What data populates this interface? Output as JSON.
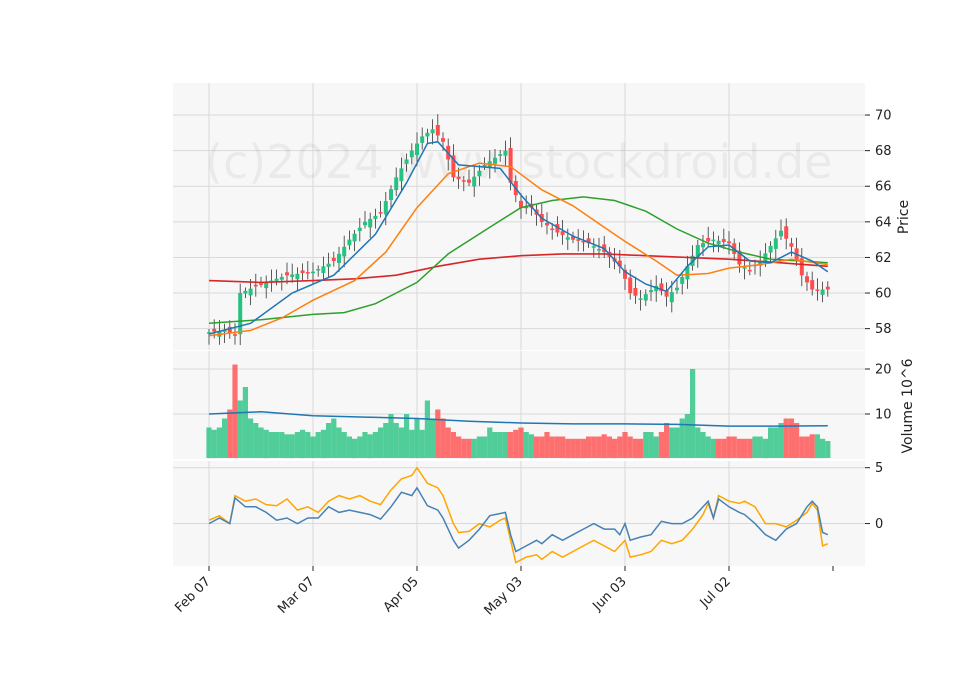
{
  "chart_data": {
    "type": "candlestick",
    "watermark": "(c)2024 www.stockdroid.de",
    "colors": {
      "up": "#26c281",
      "down": "#ff4d4d",
      "panel_bg": "#f7f7f7",
      "grid": "#d9d9d9",
      "ma_short": "#1f77b4",
      "ma_medium": "#ff7f0e",
      "ma_long": "#2ca02c",
      "ma_200": "#d62728",
      "volume_ma": "#1f77b4",
      "osc_line_1": "#4682b4",
      "osc_line_2": "#ffa500"
    },
    "x_ticks": [
      "Feb 07",
      "Mar 07",
      "Apr 05",
      "May 03",
      "Jun 03",
      "Jul 02"
    ],
    "x_tick_indices": [
      0,
      20,
      40,
      60,
      80,
      100
    ],
    "num_bars": 120,
    "price_panel": {
      "ylabel": "Price",
      "ylim": [
        56.8,
        71.8
      ],
      "yticks": [
        58,
        60,
        62,
        64,
        66,
        68,
        70
      ],
      "close_keypoints": [
        [
          0,
          57.8
        ],
        [
          3,
          57.9
        ],
        [
          5,
          57.6
        ],
        [
          6,
          60.0
        ],
        [
          10,
          60.5
        ],
        [
          15,
          61.0
        ],
        [
          20,
          61.2
        ],
        [
          24,
          61.8
        ],
        [
          27,
          63.0
        ],
        [
          30,
          64.0
        ],
        [
          33,
          64.5
        ],
        [
          36,
          66.5
        ],
        [
          39,
          68.0
        ],
        [
          41,
          68.8
        ],
        [
          43,
          69.2
        ],
        [
          45,
          68.5
        ],
        [
          47,
          66.5
        ],
        [
          50,
          66.2
        ],
        [
          53,
          67.2
        ],
        [
          56,
          67.8
        ],
        [
          57,
          68.0
        ],
        [
          58,
          66.2
        ],
        [
          60,
          64.8
        ],
        [
          62,
          64.8
        ],
        [
          64,
          64.0
        ],
        [
          67,
          63.4
        ],
        [
          70,
          63.0
        ],
        [
          73,
          62.8
        ],
        [
          76,
          62.3
        ],
        [
          79,
          61.5
        ],
        [
          80,
          60.8
        ],
        [
          81,
          60.0
        ],
        [
          83,
          59.7
        ],
        [
          86,
          60.4
        ],
        [
          88,
          59.8
        ],
        [
          90,
          60.3
        ],
        [
          92,
          61.5
        ],
        [
          94,
          62.7
        ],
        [
          97,
          63.0
        ],
        [
          100,
          62.8
        ],
        [
          102,
          61.6
        ],
        [
          104,
          61.3
        ],
        [
          106,
          61.8
        ],
        [
          110,
          63.5
        ],
        [
          112,
          62.6
        ],
        [
          114,
          61.0
        ],
        [
          116,
          60.2
        ],
        [
          119,
          60.2
        ]
      ],
      "ma_short_keypoints": [
        [
          0,
          57.7
        ],
        [
          8,
          58.3
        ],
        [
          16,
          60.0
        ],
        [
          24,
          61.0
        ],
        [
          32,
          63.3
        ],
        [
          38,
          66.2
        ],
        [
          42,
          68.4
        ],
        [
          44,
          68.5
        ],
        [
          48,
          67.2
        ],
        [
          56,
          67.0
        ],
        [
          60,
          65.5
        ],
        [
          64,
          64.2
        ],
        [
          70,
          63.2
        ],
        [
          76,
          62.5
        ],
        [
          80,
          61.2
        ],
        [
          84,
          60.5
        ],
        [
          88,
          60.1
        ],
        [
          92,
          61.5
        ],
        [
          96,
          62.6
        ],
        [
          100,
          62.7
        ],
        [
          104,
          61.8
        ],
        [
          108,
          61.7
        ],
        [
          112,
          62.3
        ],
        [
          116,
          61.8
        ],
        [
          119,
          61.2
        ]
      ],
      "ma_medium_keypoints": [
        [
          0,
          57.6
        ],
        [
          8,
          57.9
        ],
        [
          14,
          58.6
        ],
        [
          20,
          59.6
        ],
        [
          28,
          60.7
        ],
        [
          34,
          62.3
        ],
        [
          40,
          64.8
        ],
        [
          46,
          66.7
        ],
        [
          52,
          67.3
        ],
        [
          58,
          67.1
        ],
        [
          64,
          65.8
        ],
        [
          70,
          64.9
        ],
        [
          76,
          63.7
        ],
        [
          80,
          62.9
        ],
        [
          86,
          61.8
        ],
        [
          90,
          61.0
        ],
        [
          96,
          61.1
        ],
        [
          100,
          61.4
        ],
        [
          106,
          61.6
        ],
        [
          112,
          61.9
        ],
        [
          119,
          61.6
        ]
      ],
      "ma_long_keypoints": [
        [
          0,
          58.3
        ],
        [
          10,
          58.5
        ],
        [
          20,
          58.8
        ],
        [
          26,
          58.9
        ],
        [
          32,
          59.4
        ],
        [
          40,
          60.6
        ],
        [
          46,
          62.2
        ],
        [
          54,
          63.7
        ],
        [
          60,
          64.8
        ],
        [
          66,
          65.2
        ],
        [
          72,
          65.4
        ],
        [
          78,
          65.2
        ],
        [
          84,
          64.6
        ],
        [
          90,
          63.6
        ],
        [
          96,
          62.8
        ],
        [
          102,
          62.3
        ],
        [
          108,
          61.9
        ],
        [
          114,
          61.8
        ],
        [
          119,
          61.7
        ]
      ],
      "ma_200_keypoints": [
        [
          0,
          60.7
        ],
        [
          10,
          60.6
        ],
        [
          20,
          60.7
        ],
        [
          28,
          60.8
        ],
        [
          36,
          61.0
        ],
        [
          44,
          61.5
        ],
        [
          52,
          61.9
        ],
        [
          60,
          62.1
        ],
        [
          68,
          62.2
        ],
        [
          76,
          62.2
        ],
        [
          84,
          62.1
        ],
        [
          92,
          62.0
        ],
        [
          100,
          61.9
        ],
        [
          110,
          61.7
        ],
        [
          119,
          61.5
        ]
      ]
    },
    "volume_panel": {
      "ylabel": "Volume  10^6",
      "ylim": [
        0,
        24
      ],
      "yticks": [
        10,
        20
      ],
      "values": [
        7,
        6.5,
        7,
        9,
        11,
        21,
        13,
        16,
        9,
        8,
        7,
        6.5,
        6,
        6,
        6,
        5.5,
        5.5,
        6,
        6.5,
        6,
        5,
        6,
        6.5,
        8,
        9,
        7,
        6,
        5,
        4.5,
        5,
        6,
        5.5,
        6,
        7,
        8,
        10,
        8,
        7,
        10,
        6.5,
        9,
        6.5,
        13,
        9,
        11,
        9,
        7,
        6,
        5,
        4.5,
        4.5,
        4.5,
        5,
        5,
        7,
        6,
        6,
        6,
        6,
        6.5,
        7,
        6,
        5.5,
        5,
        5,
        6,
        5,
        5,
        5,
        4.5,
        4.5,
        4.5,
        4.5,
        5,
        5,
        5,
        5.5,
        5,
        4.5,
        5,
        6,
        5,
        4.5,
        4.5,
        6,
        6,
        5,
        6,
        8,
        7,
        7,
        9,
        10,
        20,
        7,
        6,
        5,
        4.5,
        4.5,
        4.5,
        5,
        5,
        4.5,
        4.5,
        4.5,
        5,
        5,
        4.5,
        7,
        7,
        8,
        9,
        9,
        8,
        5,
        5,
        5.5,
        5.5,
        4.5,
        4
      ],
      "ma_keypoints": [
        [
          0,
          10.0
        ],
        [
          10,
          10.5
        ],
        [
          20,
          9.6
        ],
        [
          30,
          9.3
        ],
        [
          40,
          9.0
        ],
        [
          50,
          8.4
        ],
        [
          60,
          8.0
        ],
        [
          70,
          7.8
        ],
        [
          80,
          7.8
        ],
        [
          90,
          7.7
        ],
        [
          100,
          7.3
        ],
        [
          110,
          7.3
        ],
        [
          119,
          7.4
        ]
      ]
    },
    "oscillator_panel": {
      "ylim": [
        -3.8,
        5.6
      ],
      "yticks": [
        0,
        5
      ],
      "line_1_keypoints": [
        [
          0,
          0.0
        ],
        [
          2,
          0.5
        ],
        [
          4,
          0.0
        ],
        [
          5,
          2.3
        ],
        [
          7,
          1.5
        ],
        [
          9,
          1.5
        ],
        [
          11,
          1.0
        ],
        [
          13,
          0.3
        ],
        [
          15,
          0.5
        ],
        [
          17,
          0.0
        ],
        [
          19,
          0.5
        ],
        [
          21,
          0.5
        ],
        [
          23,
          1.5
        ],
        [
          25,
          1.0
        ],
        [
          27,
          1.2
        ],
        [
          29,
          1.0
        ],
        [
          31,
          0.8
        ],
        [
          33,
          0.4
        ],
        [
          35,
          1.5
        ],
        [
          37,
          2.8
        ],
        [
          39,
          2.5
        ],
        [
          40,
          3.2
        ],
        [
          42,
          1.6
        ],
        [
          44,
          1.2
        ],
        [
          45,
          0.5
        ],
        [
          47,
          -1.5
        ],
        [
          48,
          -2.2
        ],
        [
          50,
          -1.5
        ],
        [
          52,
          -0.5
        ],
        [
          54,
          0.7
        ],
        [
          56,
          0.9
        ],
        [
          57,
          1.0
        ],
        [
          58,
          -1.0
        ],
        [
          59,
          -2.5
        ],
        [
          61,
          -2.0
        ],
        [
          63,
          -1.5
        ],
        [
          64,
          -1.8
        ],
        [
          66,
          -1.0
        ],
        [
          68,
          -1.5
        ],
        [
          70,
          -1.0
        ],
        [
          72,
          -0.5
        ],
        [
          74,
          0.0
        ],
        [
          76,
          -0.5
        ],
        [
          78,
          -0.5
        ],
        [
          79,
          -1.0
        ],
        [
          80,
          0.0
        ],
        [
          81,
          -1.5
        ],
        [
          83,
          -1.2
        ],
        [
          85,
          -1.0
        ],
        [
          87,
          0.2
        ],
        [
          89,
          0.0
        ],
        [
          91,
          0.0
        ],
        [
          93,
          0.5
        ],
        [
          95,
          1.5
        ],
        [
          96,
          2.0
        ],
        [
          97,
          0.5
        ],
        [
          98,
          2.2
        ],
        [
          100,
          1.5
        ],
        [
          102,
          1.0
        ],
        [
          103,
          0.8
        ],
        [
          105,
          0.0
        ],
        [
          107,
          -1.0
        ],
        [
          109,
          -1.5
        ],
        [
          111,
          -0.5
        ],
        [
          113,
          0.0
        ],
        [
          115,
          1.5
        ],
        [
          116,
          2.0
        ],
        [
          117,
          1.5
        ],
        [
          118,
          -0.8
        ],
        [
          119,
          -1.0
        ]
      ],
      "line_2_keypoints": [
        [
          0,
          0.3
        ],
        [
          2,
          0.7
        ],
        [
          4,
          0.0
        ],
        [
          5,
          2.5
        ],
        [
          7,
          2.0
        ],
        [
          9,
          2.2
        ],
        [
          11,
          1.7
        ],
        [
          13,
          1.6
        ],
        [
          15,
          2.2
        ],
        [
          17,
          1.2
        ],
        [
          19,
          1.5
        ],
        [
          21,
          1.0
        ],
        [
          23,
          2.0
        ],
        [
          25,
          2.5
        ],
        [
          27,
          2.2
        ],
        [
          29,
          2.5
        ],
        [
          31,
          2.0
        ],
        [
          33,
          1.7
        ],
        [
          35,
          3.0
        ],
        [
          37,
          4.0
        ],
        [
          39,
          4.3
        ],
        [
          40,
          5.0
        ],
        [
          42,
          3.6
        ],
        [
          44,
          3.2
        ],
        [
          45,
          2.5
        ],
        [
          47,
          0.0
        ],
        [
          48,
          -0.8
        ],
        [
          50,
          -0.7
        ],
        [
          52,
          0.0
        ],
        [
          54,
          -0.3
        ],
        [
          56,
          0.3
        ],
        [
          57,
          0.5
        ],
        [
          58,
          -1.5
        ],
        [
          59,
          -3.5
        ],
        [
          61,
          -3.0
        ],
        [
          63,
          -2.8
        ],
        [
          64,
          -3.2
        ],
        [
          66,
          -2.5
        ],
        [
          68,
          -3.0
        ],
        [
          70,
          -2.5
        ],
        [
          72,
          -2.0
        ],
        [
          74,
          -1.5
        ],
        [
          76,
          -2.0
        ],
        [
          78,
          -2.5
        ],
        [
          79,
          -2.0
        ],
        [
          80,
          -1.5
        ],
        [
          81,
          -3.0
        ],
        [
          83,
          -2.8
        ],
        [
          85,
          -2.5
        ],
        [
          87,
          -1.5
        ],
        [
          89,
          -1.8
        ],
        [
          91,
          -1.5
        ],
        [
          93,
          -0.5
        ],
        [
          95,
          0.8
        ],
        [
          96,
          1.8
        ],
        [
          97,
          0.5
        ],
        [
          98,
          2.5
        ],
        [
          100,
          2.0
        ],
        [
          102,
          1.8
        ],
        [
          103,
          2.0
        ],
        [
          105,
          1.5
        ],
        [
          107,
          0.0
        ],
        [
          109,
          0.0
        ],
        [
          111,
          -0.3
        ],
        [
          113,
          0.3
        ],
        [
          115,
          1.0
        ],
        [
          116,
          1.8
        ],
        [
          117,
          1.2
        ],
        [
          118,
          -2.0
        ],
        [
          119,
          -1.8
        ]
      ]
    }
  }
}
